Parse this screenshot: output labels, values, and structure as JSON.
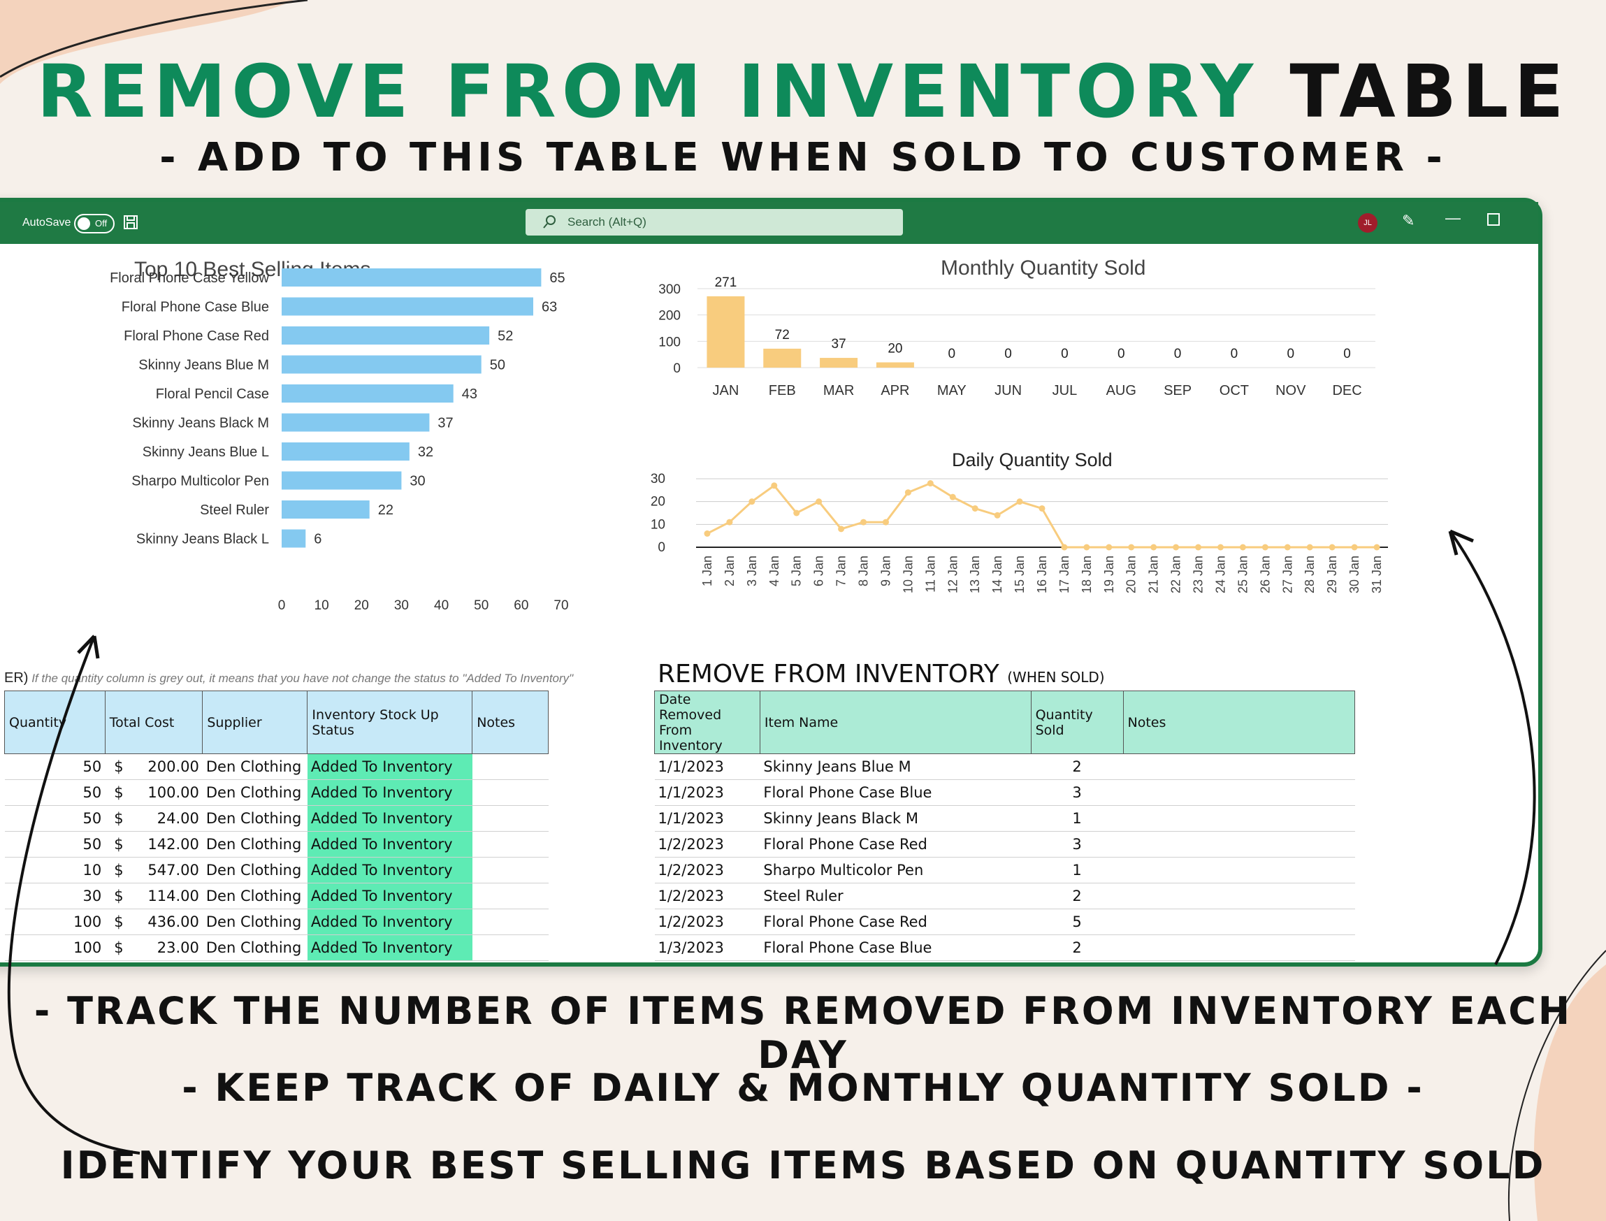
{
  "header": {
    "title_green": "REMOVE FROM INVENTORY",
    "title_black": "TABLE",
    "subtitle": "- ADD TO THIS TABLE WHEN SOLD TO CUSTOMER -"
  },
  "captions": [
    "- TRACK THE NUMBER OF ITEMS REMOVED FROM INVENTORY EACH DAY",
    "- KEEP TRACK OF DAILY & MONTHLY QUANTITY SOLD -",
    "IDENTIFY YOUR BEST SELLING ITEMS BASED ON QUANTITY SOLD"
  ],
  "colors": {
    "brand_green": "#0e8a5a",
    "titlebar": "#1f7a44",
    "bar_blue": "#84c9f0",
    "bar_gold": "#f8cc7e",
    "status_green": "#5eebb4"
  },
  "titlebar": {
    "autosave": "AutoSave",
    "toggle": "Off",
    "search_placeholder": "Search (Alt+Q)",
    "avatar": "JL",
    "icons": [
      "save-icon",
      "search-icon",
      "pen-icon",
      "minimize-icon",
      "restore-icon"
    ]
  },
  "chart_data": [
    {
      "type": "bar",
      "orientation": "horizontal",
      "title": "Top 10 Best Selling Items",
      "categories": [
        "Floral Phone Case Yellow",
        "Floral Phone Case Blue",
        "Floral Phone Case Red",
        "Skinny Jeans Blue M",
        "Floral Pencil Case",
        "Skinny Jeans Black M",
        "Skinny Jeans Blue L",
        "Sharpo Multicolor Pen",
        "Steel Ruler",
        "Skinny Jeans Black L"
      ],
      "values": [
        65,
        63,
        52,
        50,
        43,
        37,
        32,
        30,
        22,
        6
      ],
      "xlim": [
        0,
        70
      ],
      "xticks": [
        "0",
        "10",
        "20",
        "30",
        "40",
        "50",
        "60",
        "70"
      ],
      "color": "#84c9f0"
    },
    {
      "type": "bar",
      "title": "Monthly Quantity Sold",
      "categories": [
        "JAN",
        "FEB",
        "MAR",
        "APR",
        "MAY",
        "JUN",
        "JUL",
        "AUG",
        "SEP",
        "OCT",
        "NOV",
        "DEC"
      ],
      "values": [
        271,
        72,
        37,
        20,
        0,
        0,
        0,
        0,
        0,
        0,
        0,
        0
      ],
      "ylim": [
        0,
        300
      ],
      "yticks": [
        "0",
        "100",
        "200",
        "300"
      ],
      "grid": true,
      "color": "#f8cc7e"
    },
    {
      "type": "line",
      "title": "Daily Quantity Sold",
      "x": [
        "1 Jan",
        "2 Jan",
        "3 Jan",
        "4 Jan",
        "5 Jan",
        "6 Jan",
        "7 Jan",
        "8 Jan",
        "9 Jan",
        "10 Jan",
        "11 Jan",
        "12 Jan",
        "13 Jan",
        "14 Jan",
        "15 Jan",
        "16 Jan",
        "17 Jan",
        "18 Jan",
        "19 Jan",
        "20 Jan",
        "21 Jan",
        "22 Jan",
        "23 Jan",
        "24 Jan",
        "25 Jan",
        "26 Jan",
        "27 Jan",
        "28 Jan",
        "29 Jan",
        "30 Jan",
        "31 Jan"
      ],
      "values": [
        6,
        11,
        20,
        27,
        15,
        20,
        8,
        11,
        11,
        24,
        28,
        22,
        17,
        14,
        20,
        17,
        0,
        0,
        0,
        0,
        0,
        0,
        0,
        0,
        0,
        0,
        0,
        0,
        0,
        0,
        0
      ],
      "ylim": [
        0,
        30
      ],
      "yticks": [
        "0",
        "10",
        "20",
        "30"
      ],
      "grid": true,
      "color": "#f8cc7e"
    }
  ],
  "left_table": {
    "note_prefix": "ER)",
    "note": "If the quantity column is grey out, it means that you have not change the status to \"Added To Inventory\"",
    "headers": [
      "Quantity",
      "Total Cost",
      "Supplier",
      "Inventory Stock Up Status",
      "Notes"
    ],
    "rows": [
      {
        "qty": "50",
        "cur": "$",
        "cost": "200.00",
        "supplier": "Den Clothing",
        "status": "Added To Inventory"
      },
      {
        "qty": "50",
        "cur": "$",
        "cost": "100.00",
        "supplier": "Den Clothing",
        "status": "Added To Inventory"
      },
      {
        "qty": "50",
        "cur": "$",
        "cost": "24.00",
        "supplier": "Den Clothing",
        "status": "Added To Inventory"
      },
      {
        "qty": "50",
        "cur": "$",
        "cost": "142.00",
        "supplier": "Den Clothing",
        "status": "Added To Inventory"
      },
      {
        "qty": "10",
        "cur": "$",
        "cost": "547.00",
        "supplier": "Den Clothing",
        "status": "Added To Inventory"
      },
      {
        "qty": "30",
        "cur": "$",
        "cost": "114.00",
        "supplier": "Den Clothing",
        "status": "Added To Inventory"
      },
      {
        "qty": "100",
        "cur": "$",
        "cost": "436.00",
        "supplier": "Den Clothing",
        "status": "Added To Inventory"
      },
      {
        "qty": "100",
        "cur": "$",
        "cost": "23.00",
        "supplier": "Den Clothing",
        "status": "Added To Inventory"
      }
    ]
  },
  "right_table": {
    "heading": "REMOVE FROM INVENTORY",
    "heading_small": "(WHEN SOLD)",
    "headers": [
      "Date Removed From Inventory",
      "Item Name",
      "Quantity Sold",
      "Notes"
    ],
    "rows": [
      {
        "date": "1/1/2023",
        "item": "Skinny Jeans Blue M",
        "qty": "2"
      },
      {
        "date": "1/1/2023",
        "item": "Floral Phone Case Blue",
        "qty": "3"
      },
      {
        "date": "1/1/2023",
        "item": "Skinny Jeans Black M",
        "qty": "1"
      },
      {
        "date": "1/2/2023",
        "item": "Floral Phone Case Red",
        "qty": "3"
      },
      {
        "date": "1/2/2023",
        "item": "Sharpo Multicolor Pen",
        "qty": "1"
      },
      {
        "date": "1/2/2023",
        "item": "Steel Ruler",
        "qty": "2"
      },
      {
        "date": "1/2/2023",
        "item": "Floral Phone Case Red",
        "qty": "5"
      },
      {
        "date": "1/3/2023",
        "item": "Floral Phone Case Blue",
        "qty": "2"
      }
    ]
  }
}
